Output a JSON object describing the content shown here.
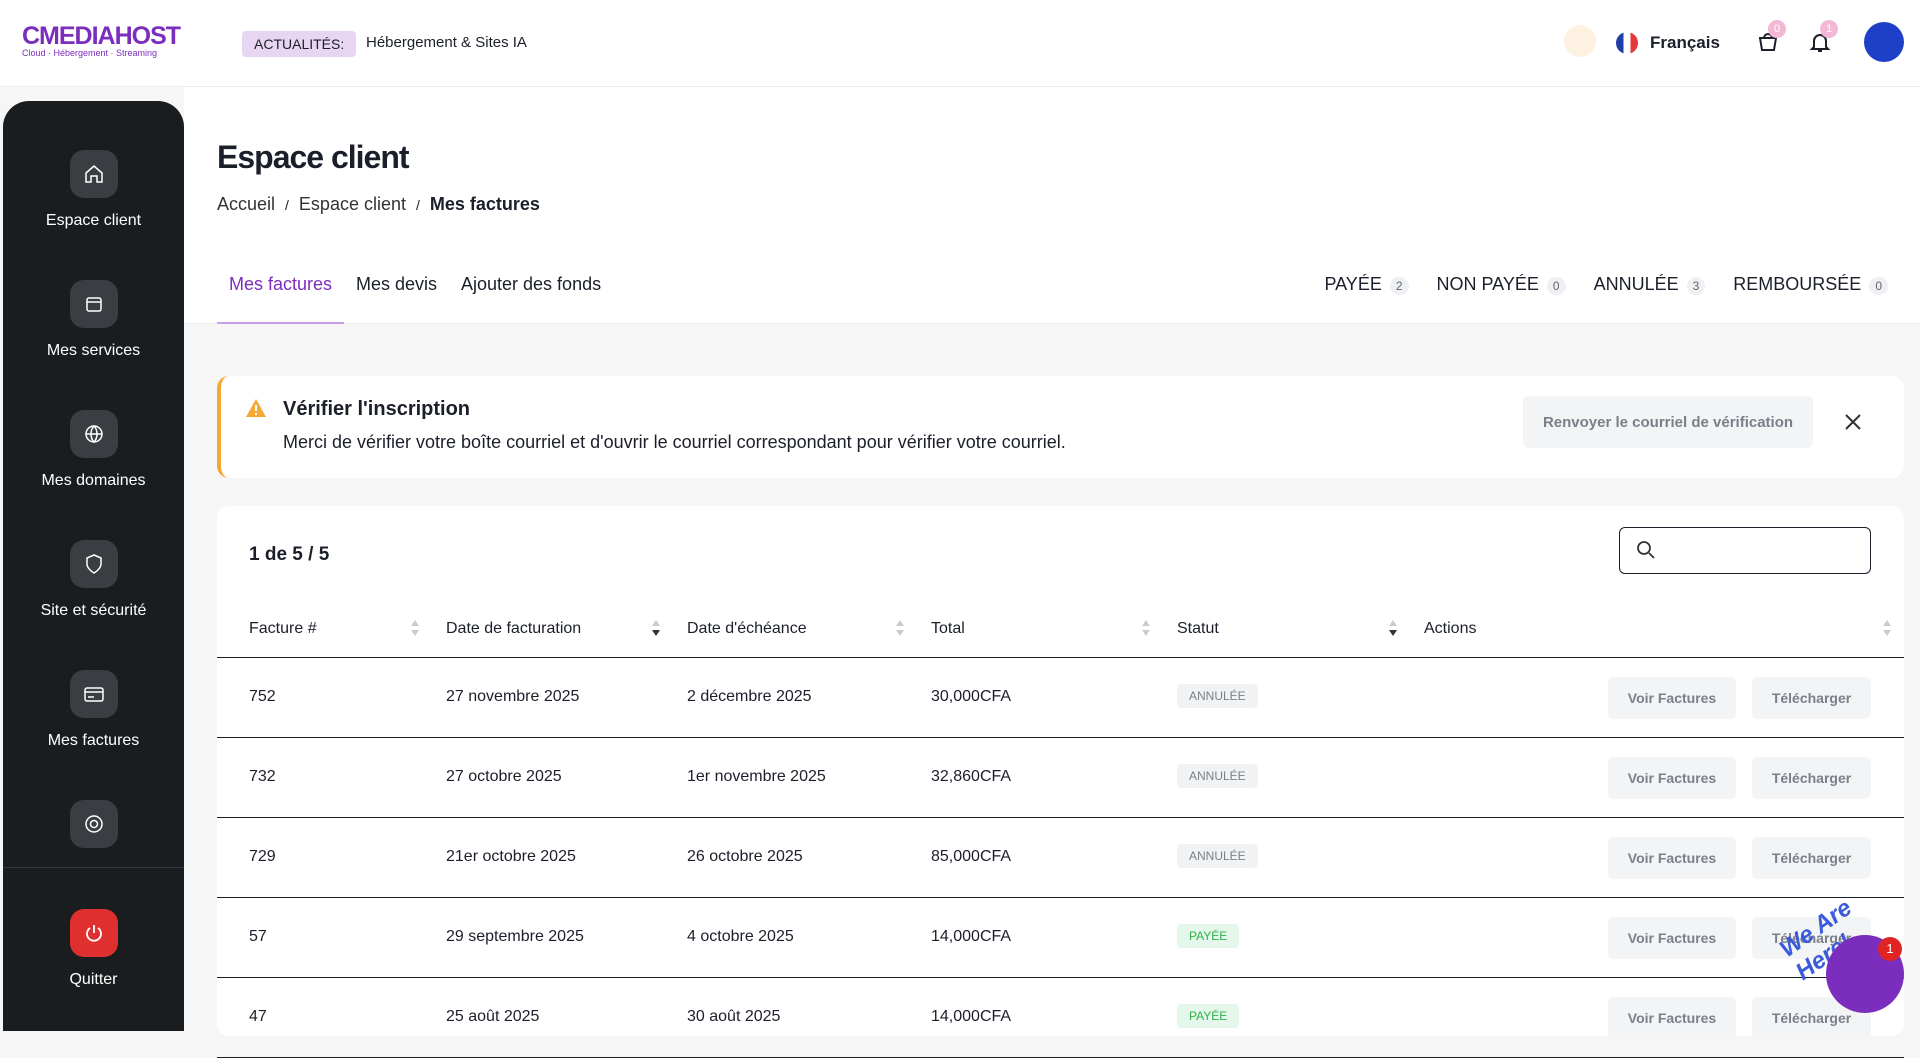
{
  "header": {
    "logo": "CMEDIAHOST",
    "tagline": "Cloud · Hébergement · Streaming",
    "news_label": "ACTUALITÉS:",
    "news_text": "Hébergement & Sites IA",
    "language": "Français",
    "cart_count": 0,
    "notif_count": 1
  },
  "sidebar": {
    "items": [
      {
        "label": "Espace client",
        "icon": "home"
      },
      {
        "label": "Mes services",
        "icon": "box"
      },
      {
        "label": "Mes domaines",
        "icon": "globe"
      },
      {
        "label": "Site et sécurité",
        "icon": "shield"
      },
      {
        "label": "Mes factures",
        "icon": "card"
      },
      {
        "label": null,
        "icon": "help"
      }
    ],
    "quit": "Quitter"
  },
  "page": {
    "title": "Espace client",
    "breadcrumb": [
      "Accueil",
      "Espace client",
      "Mes factures"
    ],
    "tabs": [
      "Mes factures",
      "Mes devis",
      "Ajouter des fonds"
    ],
    "filters": [
      {
        "label": "PAYÉE",
        "count": 2
      },
      {
        "label": "NON PAYÉE",
        "count": 0
      },
      {
        "label": "ANNULÉE",
        "count": 3
      },
      {
        "label": "REMBOURSÉE",
        "count": 0
      }
    ]
  },
  "alert": {
    "title": "Vérifier l'inscription",
    "text": "Merci de vérifier votre boîte courriel et d'ouvrir le courriel correspondant pour vérifier votre courriel.",
    "button": "Renvoyer le courriel de vérification"
  },
  "table": {
    "summary": "1 de 5 / 5",
    "columns": [
      "Facture #",
      "Date de facturation",
      "Date d'échéance",
      "Total",
      "Statut",
      "Actions"
    ],
    "actions": [
      "Voir Factures",
      "Télécharger"
    ],
    "rows": [
      [
        "752",
        "27 novembre 2025",
        "2 décembre 2025",
        "30,000CFA",
        "ANNULÉE"
      ],
      [
        "732",
        "27 octobre 2025",
        "1er novembre 2025",
        "32,860CFA",
        "ANNULÉE"
      ],
      [
        "729",
        "21er octobre 2025",
        "26 octobre 2025",
        "85,000CFA",
        "ANNULÉE"
      ],
      [
        "57",
        "29 septembre 2025",
        "4 octobre 2025",
        "14,000CFA",
        "PAYÉE"
      ],
      [
        "47",
        "25 août 2025",
        "30 août 2025",
        "14,000CFA",
        "PAYÉE"
      ]
    ]
  },
  "chat": {
    "tagline": "We Are Here!",
    "badge": 1
  }
}
